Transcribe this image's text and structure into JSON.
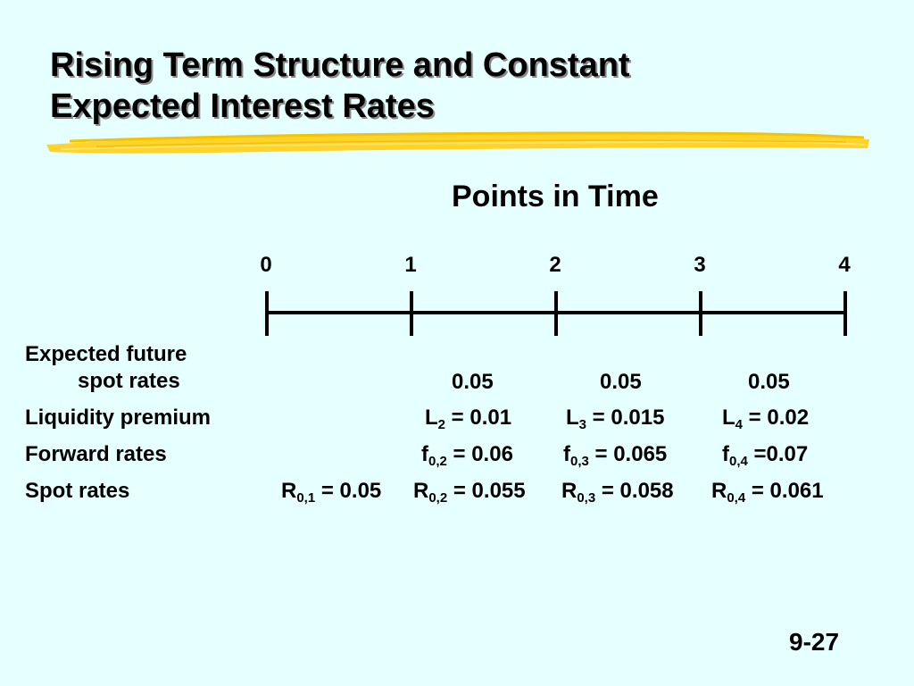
{
  "slide": {
    "title_line1": "Rising Term Structure and Constant",
    "title_line2": "Expected Interest Rates",
    "subtitle": "Points in Time",
    "page_number": "9-27",
    "colors": {
      "background": "#e6ffff",
      "brush": "#ffd21f",
      "text": "#000000"
    }
  },
  "timeline": {
    "ticks": [
      "0",
      "1",
      "2",
      "3",
      "4"
    ]
  },
  "rows": {
    "expected_label_1": "Expected future",
    "expected_label_2": "spot rates",
    "expected": [
      "0.05",
      "0.05",
      "0.05"
    ],
    "liquidity_label": "Liquidity premium",
    "liquidity": [
      {
        "sym": "L",
        "sub": "2",
        "eq": " = 0.01"
      },
      {
        "sym": "L",
        "sub": "3",
        "eq": " = 0.015"
      },
      {
        "sym": "L",
        "sub": "4",
        "eq": " = 0.02"
      }
    ],
    "forward_label": "Forward rates",
    "forward": [
      {
        "sym": "f",
        "sub": "0,2",
        "eq": " = 0.06"
      },
      {
        "sym": "f",
        "sub": "0,3",
        "eq": " = 0.065"
      },
      {
        "sym": "f",
        "sub": "0,4",
        "eq": " =0.07"
      }
    ],
    "spot_label": "Spot rates",
    "spot": [
      {
        "sym": "R",
        "sub": "0,1",
        "eq": " = 0.05"
      },
      {
        "sym": "R",
        "sub": "0,2",
        "eq": " = 0.055"
      },
      {
        "sym": "R",
        "sub": "0,3",
        "eq": " = 0.058"
      },
      {
        "sym": "R",
        "sub": "0,4",
        "eq": " = 0.061"
      }
    ]
  }
}
